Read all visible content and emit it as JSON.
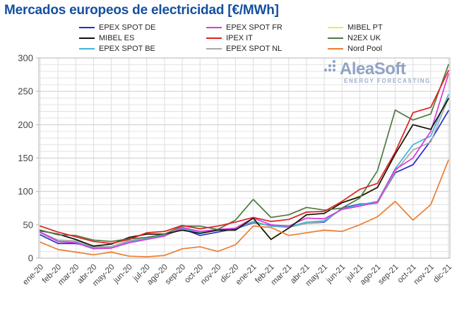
{
  "title": "Mercados europeos de electricidad [€/MWh]",
  "watermark": {
    "name": "AleaSoft",
    "tagline": "ENERGY FORECASTING"
  },
  "legend": {
    "items": [
      {
        "label": "EPEX SPOT DE",
        "color": "#2B2BC8"
      },
      {
        "label": "EPEX SPOT FR",
        "color": "#DA3BDA"
      },
      {
        "label": "MIBEL PT",
        "color": "#EFEE3C"
      },
      {
        "label": "MIBEL ES",
        "color": "#111111"
      },
      {
        "label": "IPEX IT",
        "color": "#E02020"
      },
      {
        "label": "N2EX UK",
        "color": "#4F7942"
      },
      {
        "label": "EPEX SPOT BE",
        "color": "#3DB7D9"
      },
      {
        "label": "EPEX SPOT NL",
        "color": "#A9A9A9"
      },
      {
        "label": "Nord Pool",
        "color": "#ED7D31"
      }
    ]
  },
  "chart_data": {
    "type": "line",
    "title": "Mercados europeos de electricidad [€/MWh]",
    "xlabel": "",
    "ylabel": "",
    "ylim": [
      0,
      300
    ],
    "yticks": [
      0,
      50,
      100,
      150,
      200,
      250,
      300
    ],
    "minor_grid_step": 10,
    "grid": true,
    "legend_position": "top",
    "categories": [
      "ene-20",
      "feb-20",
      "mar-20",
      "abr-20",
      "may-20",
      "jun-20",
      "jul-20",
      "ago-20",
      "sep-20",
      "oct-20",
      "nov-20",
      "dic-20",
      "ene-21",
      "feb-21",
      "mar-21",
      "abr-21",
      "may-21",
      "jun-21",
      "jul-21",
      "ago-21",
      "sep-21",
      "oct-21",
      "nov-21",
      "dic-21"
    ],
    "series": [
      {
        "name": "EPEX SPOT DE",
        "color": "#2B2BC8",
        "values": [
          35,
          22,
          22,
          17,
          17,
          26,
          30,
          35,
          44,
          34,
          39,
          44,
          53,
          49,
          48,
          52,
          54,
          75,
          81,
          83,
          128,
          140,
          176,
          221
        ]
      },
      {
        "name": "EPEX SPOT NL",
        "color": "#A9A9A9",
        "values": [
          39,
          27,
          26,
          17,
          17,
          26,
          30,
          34,
          43,
          38,
          42,
          45,
          54,
          48,
          46,
          52,
          55,
          74,
          80,
          82,
          130,
          162,
          174,
          240
        ]
      },
      {
        "name": "EPEX SPOT BE",
        "color": "#3DB7D9",
        "values": [
          38,
          25,
          24,
          15,
          15,
          24,
          29,
          34,
          45,
          38,
          42,
          45,
          55,
          48,
          47,
          54,
          56,
          74,
          80,
          85,
          134,
          170,
          183,
          245
        ]
      },
      {
        "name": "EPEX SPOT FR",
        "color": "#DA3BDA",
        "values": [
          39,
          25,
          23,
          14,
          15,
          23,
          28,
          33,
          46,
          40,
          43,
          45,
          60,
          50,
          48,
          60,
          59,
          73,
          78,
          84,
          133,
          150,
          190,
          276
        ]
      },
      {
        "name": "MIBEL PT",
        "color": "#EFEE3C",
        "values": [
          41,
          36,
          28,
          18,
          21,
          31,
          36,
          36,
          42,
          37,
          42,
          42,
          60,
          29,
          45,
          65,
          67,
          83,
          93,
          106,
          156,
          200,
          193,
          239
        ]
      },
      {
        "name": "MIBEL ES",
        "color": "#111111",
        "values": [
          41,
          36,
          28,
          18,
          21,
          31,
          36,
          36,
          42,
          37,
          42,
          42,
          60,
          28,
          45,
          65,
          67,
          83,
          92,
          106,
          156,
          200,
          193,
          239
        ]
      },
      {
        "name": "N2EX UK",
        "color": "#4F7942",
        "values": [
          42,
          35,
          34,
          27,
          25,
          29,
          31,
          36,
          48,
          48,
          43,
          57,
          88,
          61,
          65,
          76,
          72,
          75,
          90,
          131,
          222,
          207,
          216,
          290
        ]
      },
      {
        "name": "IPEX IT",
        "color": "#E02020",
        "values": [
          48,
          39,
          32,
          25,
          22,
          28,
          38,
          40,
          49,
          44,
          48,
          54,
          61,
          55,
          58,
          69,
          70,
          85,
          103,
          112,
          159,
          218,
          226,
          281
        ]
      },
      {
        "name": "Nord Pool",
        "color": "#ED7D31",
        "values": [
          24,
          13,
          9,
          5,
          9,
          3,
          2,
          4,
          14,
          17,
          10,
          20,
          48,
          46,
          34,
          38,
          42,
          40,
          50,
          62,
          85,
          57,
          80,
          147
        ]
      }
    ]
  }
}
